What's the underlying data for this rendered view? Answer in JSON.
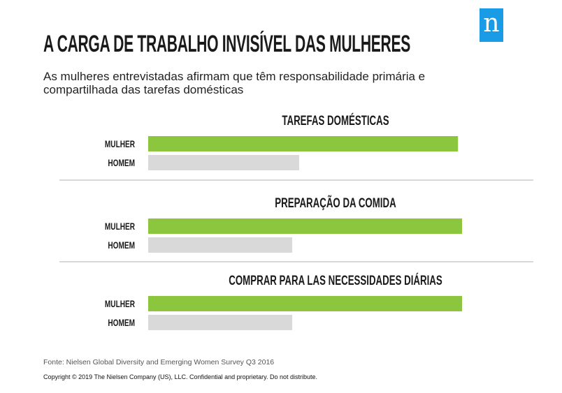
{
  "title": "A CARGA DE TRABALHO INVISÍVEL DAS MULHERES",
  "subtitle": "As mulheres entrevistadas afirmam que têm responsabilidade primária e compartilhada das tarefas domésticas",
  "logo_text": "n",
  "source": "Fonte: Nielsen Global Diversity and Emerging Women Survey Q3 2016",
  "copyright": "Copyright © 2019 The Nielsen Company (US), LLC. Confidential and proprietary. Do not distribute.",
  "colors": {
    "mulher": "#8cc63f",
    "homem": "#d9d9d9",
    "logo": "#1a9be6",
    "divider": "#cccccc"
  },
  "chart_data": [
    {
      "type": "bar",
      "orientation": "horizontal",
      "title": "TAREFAS DOMÉSTICAS",
      "categories": [
        "MULHER",
        "HOMEM"
      ],
      "values": [
        98.7,
        48.1
      ],
      "xlim": [
        0,
        100
      ],
      "grid": false
    },
    {
      "type": "bar",
      "orientation": "horizontal",
      "title": "PREPARAÇÃO DA COMIDA",
      "categories": [
        "MULHER",
        "HOMEM"
      ],
      "values": [
        100,
        45.9
      ],
      "xlim": [
        0,
        100
      ],
      "grid": false
    },
    {
      "type": "bar",
      "orientation": "horizontal",
      "title": "COMPRAR PARA LAS NECESSIDADES DIÁRIAS",
      "categories": [
        "MULHER",
        "HOMEM"
      ],
      "values": [
        100,
        45.9
      ],
      "xlim": [
        0,
        100
      ],
      "grid": false
    }
  ]
}
